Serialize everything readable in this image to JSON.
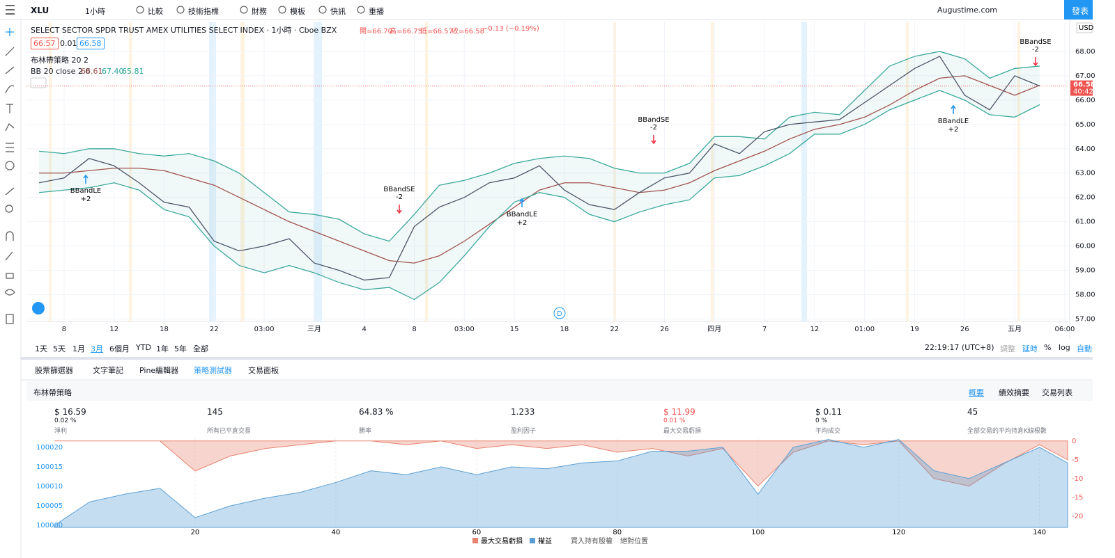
{
  "toolbar": {
    "symbol": "XLU",
    "interval": "1小時",
    "items": [
      "比較",
      "技術指標",
      "財務",
      "模板",
      "快訊",
      "重播"
    ],
    "account": "Augustime.com",
    "publish": "發表"
  },
  "legend": {
    "title": "SELECT SECTOR SPDR TRUST AMEX UTILITIES SELECT INDEX · 1小時 · Cboe BZX",
    "ohlc": [
      "開=66.70",
      "高=66.75",
      "低=66.57",
      "收=66.58"
    ],
    "change": "−0.13 (−0.19%)",
    "bid": "66.57",
    "spread": "0.01",
    "ask": "66.58",
    "strategy": "布林帶策略 20 2",
    "bb": "BB 20 close 2 0",
    "bb_values": [
      "66.61",
      "67.40",
      "65.81"
    ]
  },
  "signals": [
    {
      "label": "BBandLE",
      "qty": "+2",
      "side": "long"
    },
    {
      "label": "BBandSE",
      "qty": "-2",
      "side": "short"
    },
    {
      "label": "BBandLE",
      "qty": "+2",
      "side": "long"
    },
    {
      "label": "BBandSE",
      "qty": "-2",
      "side": "short"
    },
    {
      "label": "BBandLE",
      "qty": "+2",
      "side": "long"
    },
    {
      "label": "BBandSE",
      "qty": "-2",
      "side": "short"
    }
  ],
  "marker": "D",
  "price_axis": {
    "currency": "USD",
    "last": "66.58",
    "countdown": "40:42"
  },
  "range_bar": {
    "ranges": [
      "1天",
      "5天",
      "1月",
      "3月",
      "6個月",
      "YTD",
      "1年",
      "5年",
      "全部"
    ],
    "clock": "22:19:17 (UTC+8)",
    "options": [
      "調整",
      "延時",
      "%",
      "log",
      "自動"
    ]
  },
  "tabs": [
    "股票篩選器",
    "文字筆記",
    "Pine編輯器",
    "策略測試器",
    "交易面板"
  ],
  "strategy": {
    "name": "布林帶策略",
    "views": [
      "概要",
      "績效摘要",
      "交易列表"
    ],
    "stats": [
      {
        "value": "$ 16.59",
        "sub": "0.02 %",
        "label": "淨利"
      },
      {
        "value": "145",
        "label": "所有已平倉交易"
      },
      {
        "value": "64.83 %",
        "label": "勝率"
      },
      {
        "value": "1.233",
        "label": "盈利因子"
      },
      {
        "value": "$ 11.99",
        "sub": "0.01 %",
        "label": "最大交易虧損"
      },
      {
        "value": "$ 0.11",
        "sub": "0 %",
        "label": "平均成交"
      },
      {
        "value": "45",
        "label": "全部交易的平均持倉K線根數"
      }
    ]
  },
  "equity_legend_extra": [
    "買入持有股權",
    "絕對位置"
  ],
  "chart_data": [
    {
      "type": "line",
      "grid": true,
      "categories": [
        null,
        "8",
        null,
        "12",
        null,
        "18",
        null,
        "22",
        null,
        "03:00",
        null,
        "三月",
        null,
        "4",
        null,
        "8",
        null,
        "03:00",
        null,
        "15",
        null,
        "18",
        null,
        "22",
        null,
        "26",
        null,
        "四月",
        null,
        "7",
        null,
        "12",
        null,
        "01:00",
        null,
        "19",
        null,
        "26",
        null,
        "五月",
        null,
        "06:00"
      ],
      "ylim": [
        56.9,
        69.2
      ],
      "yticks": [
        {
          "value": 57,
          "label": "57.00"
        },
        {
          "value": 58,
          "label": "58.00"
        },
        {
          "value": 59,
          "label": "59.00"
        },
        {
          "value": 60,
          "label": "60.00"
        },
        {
          "value": 61,
          "label": "61.00"
        },
        {
          "value": 62,
          "label": "62.00"
        },
        {
          "value": 63,
          "label": "63.00"
        },
        {
          "value": 64,
          "label": "64.00"
        },
        {
          "value": 65,
          "label": "65.00"
        },
        {
          "value": 66,
          "label": "66.00"
        },
        {
          "value": 67,
          "label": "67.00"
        },
        {
          "value": 68,
          "label": "68.00"
        }
      ],
      "series": [
        {
          "color": "#4a5568",
          "values": [
            62.6,
            62.8,
            63.6,
            63.3,
            62.6,
            61.8,
            61.6,
            60.2,
            59.8,
            60.0,
            60.3,
            59.3,
            59.0,
            58.6,
            58.7,
            60.8,
            61.6,
            62.0,
            62.6,
            62.8,
            63.3,
            62.3,
            61.7,
            61.5,
            62.2,
            62.8,
            63.0,
            64.2,
            63.8,
            64.7,
            65.0,
            65.1,
            65.2,
            65.9,
            66.6,
            67.3,
            67.8,
            66.2,
            65.6,
            67.0,
            66.58,
            null
          ]
        },
        {
          "color": "#a0524f",
          "values": [
            63.0,
            63.0,
            63.1,
            63.2,
            63.2,
            63.1,
            62.8,
            62.5,
            62.0,
            61.5,
            61.0,
            60.6,
            60.2,
            59.8,
            59.4,
            59.3,
            59.6,
            60.2,
            60.9,
            61.6,
            62.3,
            62.6,
            62.6,
            62.4,
            62.2,
            62.3,
            62.6,
            63.1,
            63.5,
            63.9,
            64.4,
            64.8,
            65.0,
            65.3,
            65.8,
            66.4,
            66.9,
            67.0,
            66.6,
            66.2,
            66.61,
            null
          ]
        },
        {
          "color": "#3aa89b",
          "values": [
            63.9,
            63.8,
            64.0,
            64.0,
            63.8,
            63.7,
            63.8,
            63.5,
            63.0,
            62.2,
            61.4,
            61.3,
            61.1,
            60.5,
            60.2,
            61.3,
            62.5,
            62.7,
            63.0,
            63.4,
            63.6,
            63.7,
            63.6,
            63.2,
            63.0,
            63.0,
            63.4,
            64.5,
            64.5,
            64.4,
            65.3,
            65.5,
            65.4,
            66.4,
            67.4,
            67.8,
            68.0,
            67.7,
            66.9,
            67.3,
            67.4,
            null
          ]
        },
        {
          "color": "#3aa89b",
          "values": [
            62.2,
            62.3,
            62.4,
            62.6,
            62.3,
            61.5,
            61.2,
            60.0,
            59.2,
            58.9,
            59.2,
            58.9,
            58.5,
            58.2,
            58.3,
            57.8,
            58.5,
            59.6,
            60.8,
            61.8,
            62.2,
            62.0,
            61.3,
            61.0,
            61.4,
            61.7,
            61.9,
            62.8,
            62.9,
            63.3,
            63.8,
            64.6,
            64.6,
            65.0,
            65.6,
            66.0,
            66.4,
            66.0,
            65.4,
            65.3,
            65.81,
            null
          ]
        }
      ]
    },
    {
      "type": "area",
      "x": [
        0,
        5,
        10,
        15,
        20,
        25,
        30,
        35,
        40,
        45,
        50,
        55,
        60,
        65,
        70,
        75,
        80,
        85,
        90,
        95,
        100,
        105,
        110,
        115,
        120,
        125,
        130,
        135,
        140,
        144
      ],
      "xlim": [
        0,
        144
      ],
      "xticks": [
        20,
        40,
        60,
        80,
        100,
        120,
        140
      ],
      "ylim": [
        99999.5,
        100022.3
      ],
      "yticks": [
        100000,
        100005,
        100010,
        100015,
        100020
      ],
      "y2lim": [
        -23,
        0.7
      ],
      "y2ticks": [
        0,
        -5,
        -10,
        -15,
        -20
      ],
      "series": [
        {
          "name": "最大交易虧損",
          "color": "#e8836f",
          "axis": "y2",
          "values": [
            0,
            0,
            0,
            0,
            -8,
            -4,
            -2,
            -1,
            0,
            0,
            -1,
            0,
            -2,
            -1,
            -2,
            -1,
            -3,
            -2,
            -4,
            -2,
            -12,
            -3,
            0,
            -1,
            0,
            -10,
            -12,
            -6,
            -1,
            -5
          ]
        },
        {
          "name": "權益",
          "color": "#5a9fd4",
          "values": [
            100000,
            100006,
            100008,
            100009.5,
            100002,
            100005,
            100007,
            100008.5,
            100011,
            100014,
            100013,
            100015,
            100013,
            100015,
            100014.5,
            100016,
            100016.5,
            100019,
            100019,
            100020,
            100008,
            100020,
            100022,
            100020,
            100022,
            100014,
            100012,
            100016,
            100020,
            100016
          ]
        }
      ]
    }
  ]
}
